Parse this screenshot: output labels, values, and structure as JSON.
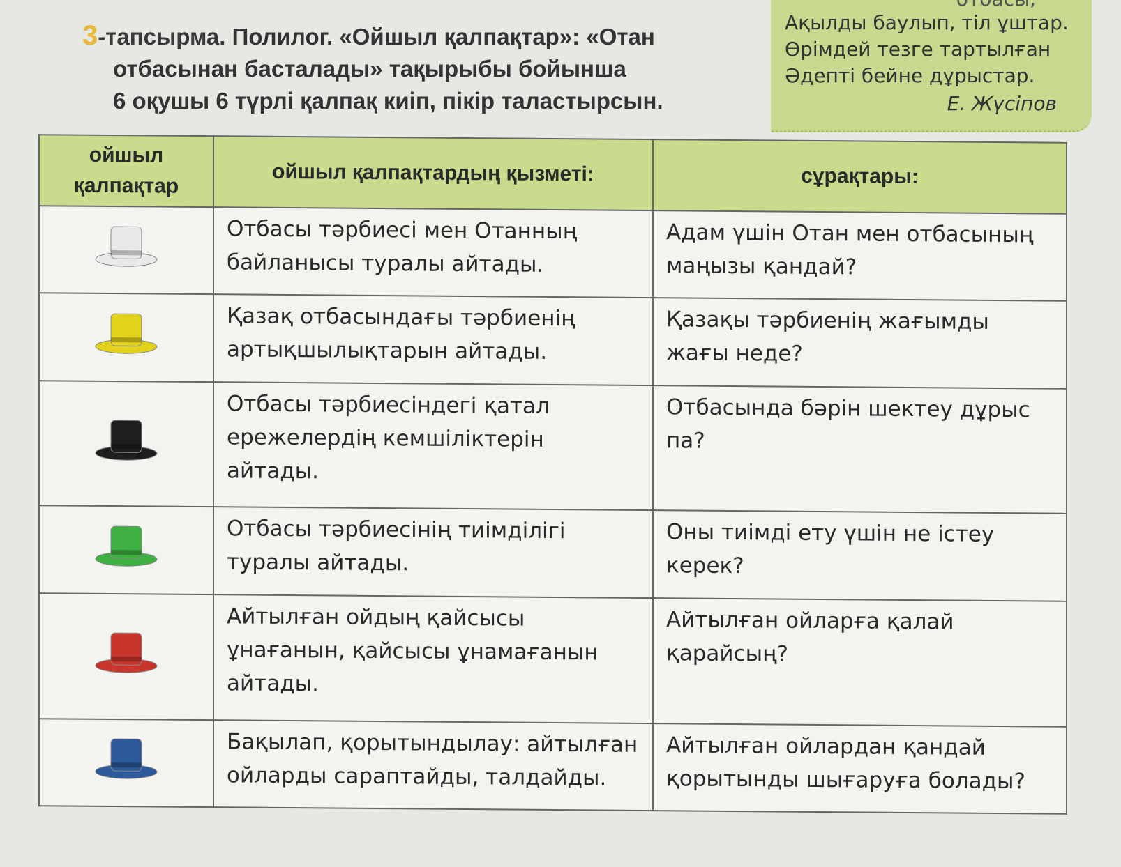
{
  "task": {
    "number": "3",
    "label": "-тапсырма.",
    "line1": " Полилог. «Ойшыл қалпақтар»: «Отан",
    "line2": "отбасынан басталады» тақырыбы бойынша",
    "line3": "6 оқушы 6 түрлі қалпақ киіп, пікір таластырсын."
  },
  "poem": {
    "cut_line": "отбасы,",
    "lines": [
      "Ақылды баулып, тіл ұштар.",
      "Өрімдей тезге тартылған",
      "Әдепті бейне дұрыстар."
    ],
    "author": "Е. Жүсіпов"
  },
  "table": {
    "headers": [
      "ойшыл қалпақтар",
      "ойшыл қалпақтардың қызметі:",
      "сұрақтары:"
    ],
    "header_color": "#c9dc8e",
    "rows": [
      {
        "hat": "white-hat-icon",
        "color": "#e8e8e8",
        "function": "Отбасы тәрбиесі мен Отанның байланысы туралы айтады.",
        "question": "Адам үшін Отан мен отбасының маңызы қандай?"
      },
      {
        "hat": "yellow-hat-icon",
        "color": "#e3d21c",
        "function": "Қазақ отбасындағы тәрбиенің артықшылықтарын айтады.",
        "question": "Қазақы тәрбиенің жағымды жағы неде?"
      },
      {
        "hat": "black-hat-icon",
        "color": "#1e1e1e",
        "function": "Отбасы тәрбиесіндегі қатал ережелердің кемшіліктерін айтады.",
        "question": "Отбасында бәрін шектеу дұрыс па?"
      },
      {
        "hat": "green-hat-icon",
        "color": "#3fb042",
        "function": "Отбасы тәрбиесінің тиімділігі туралы айтады.",
        "question": "Оны тиімді ету үшін не істеу керек?"
      },
      {
        "hat": "red-hat-icon",
        "color": "#c8352c",
        "function": "Айтылған ойдың қайсысы ұнағанын, қайсысы ұнамағанын айтады.",
        "question": "Айтылған ойларға қалай қарайсың?"
      },
      {
        "hat": "blue-hat-icon",
        "color": "#2d5a9a",
        "function": "Бақылап, қорытындылау: айтылған ойларды сараптайды, талдайды.",
        "question": "Айтылған ойлардан қандай қорытынды шығаруға болады?"
      }
    ]
  }
}
